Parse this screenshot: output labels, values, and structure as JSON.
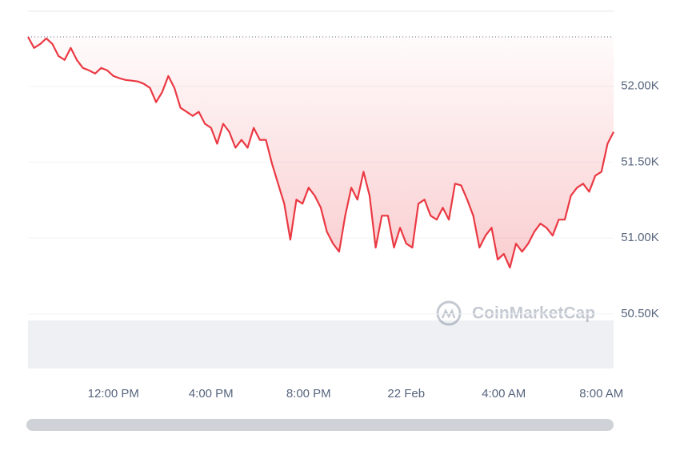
{
  "chart_data": {
    "type": "line",
    "categories": [
      null,
      null,
      null,
      null,
      null,
      null,
      null,
      null,
      null,
      null,
      null,
      null,
      null,
      null,
      "12:00 PM",
      null,
      null,
      null,
      null,
      null,
      null,
      null,
      null,
      null,
      null,
      null,
      null,
      null,
      null,
      null,
      "4:00 PM",
      null,
      null,
      null,
      null,
      null,
      null,
      null,
      null,
      null,
      null,
      null,
      null,
      null,
      null,
      null,
      "8:00 PM",
      null,
      null,
      null,
      null,
      null,
      null,
      null,
      null,
      null,
      null,
      null,
      null,
      null,
      null,
      null,
      "22 Feb",
      null,
      null,
      null,
      null,
      null,
      null,
      null,
      null,
      null,
      null,
      null,
      null,
      null,
      null,
      null,
      "4:00 AM",
      null,
      null,
      null,
      null,
      null,
      null,
      null,
      null,
      null,
      null,
      null,
      null,
      null,
      null,
      null,
      "8:00 AM",
      null,
      null
    ],
    "series": [
      {
        "color": "#ea3943",
        "values": [
          52326,
          52253,
          52279,
          52316,
          52279,
          52200,
          52174,
          52253,
          52174,
          52121,
          52105,
          52084,
          52121,
          52105,
          52068,
          52053,
          52042,
          52037,
          52032,
          52016,
          51989,
          51895,
          51963,
          52068,
          51989,
          51858,
          51832,
          51805,
          51832,
          51753,
          51726,
          51621,
          51753,
          51700,
          51595,
          51647,
          51595,
          51726,
          51647,
          51647,
          51490,
          51358,
          51226,
          50989,
          51253,
          51226,
          51332,
          51279,
          51200,
          51042,
          50963,
          50910,
          51147,
          51332,
          51253,
          51437,
          51279,
          50937,
          51147,
          51147,
          50937,
          51068,
          50963,
          50937,
          51226,
          51253,
          51147,
          51121,
          51200,
          51121,
          51358,
          51347,
          51253,
          51147,
          50937,
          51016,
          51068,
          50858,
          50895,
          50805,
          50963,
          50910,
          50963,
          51042,
          51095,
          51068,
          51016,
          51121,
          51121,
          51279,
          51332,
          51358,
          51305,
          51411,
          51437,
          51621,
          51700
        ]
      }
    ],
    "baseline": 52326,
    "ylim": [
      50140,
      52495
    ],
    "yticks": [
      {
        "value": 50500,
        "label": "50.50K"
      },
      {
        "value": 51000,
        "label": "51.00K"
      },
      {
        "value": 51500,
        "label": "51.50K"
      },
      {
        "value": 52000,
        "label": "52.00K"
      }
    ],
    "grid": true,
    "watermark": "CoinMarketCap"
  }
}
